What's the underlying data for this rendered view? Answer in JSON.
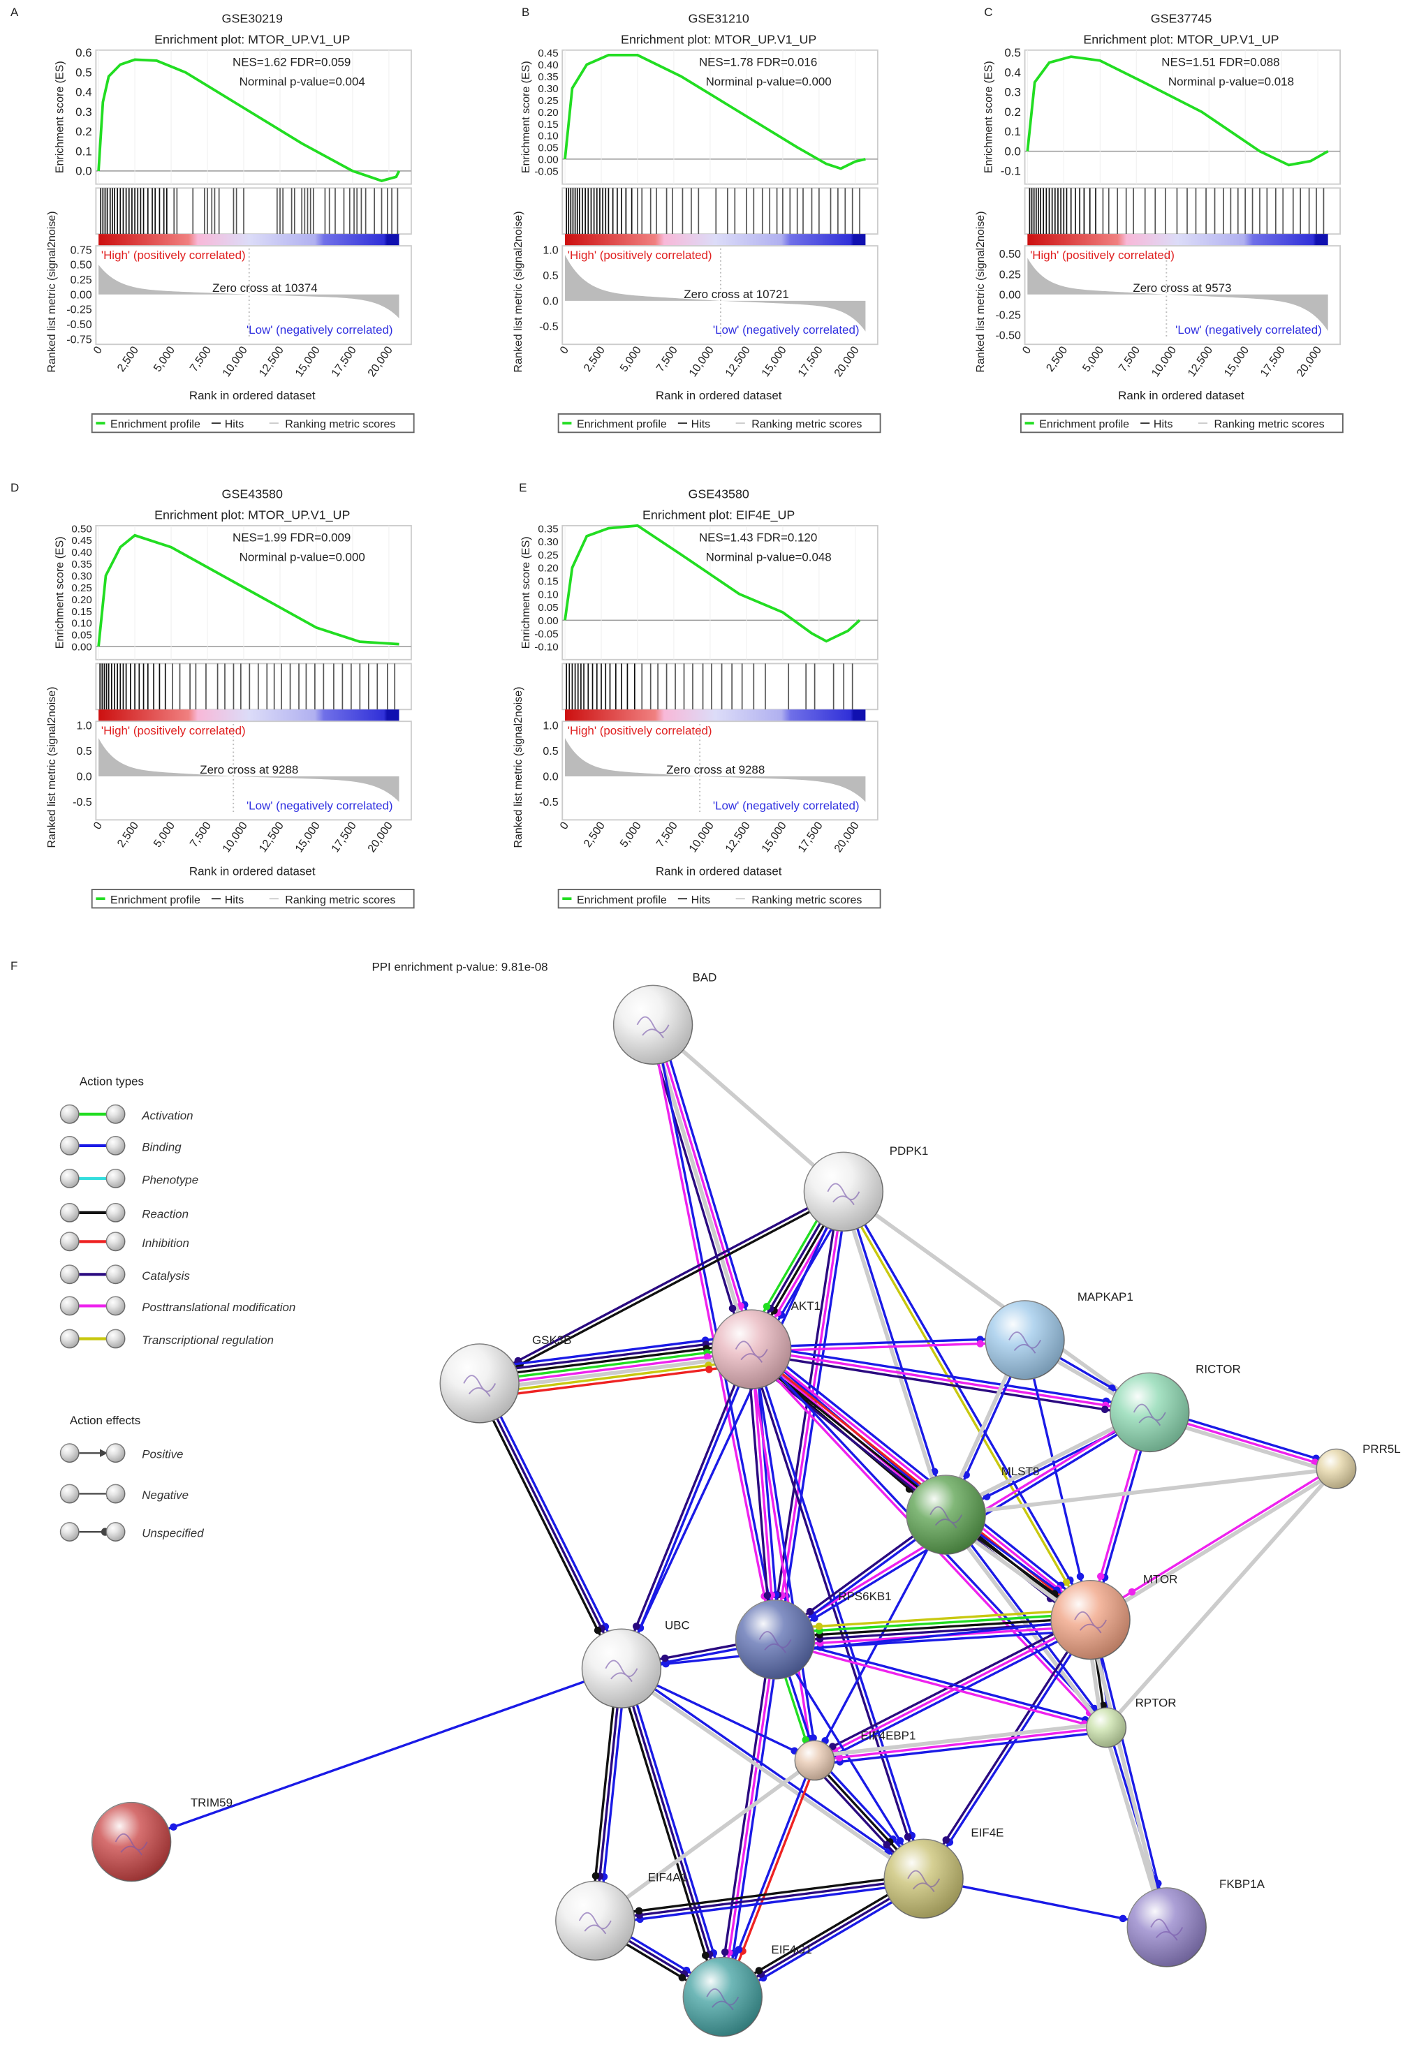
{
  "gsea_panels": [
    {
      "label": "A",
      "dataset": "GSE30219",
      "title": "Enrichment plot: MTOR_UP.V1_UP",
      "stats": "NES=1.62  FDR=0.059",
      "pvalue": "Norminal p-value=0.004",
      "es_ticks": [
        "0.0",
        "0.1",
        "0.2",
        "0.3",
        "0.4",
        "0.5",
        "0.6"
      ],
      "es_range": [
        0,
        0.6
      ],
      "metric_ticks": [
        "0.75",
        "0.50",
        "0.25",
        "0.00",
        "-0.25",
        "-0.50",
        "-0.75"
      ],
      "metric_range": [
        -0.75,
        0.75
      ],
      "metric_start": 0.5,
      "metric_end": -0.4,
      "zero_cross": "Zero cross at 10374",
      "zero_cross_rank": 10374,
      "es_curve": [
        [
          0,
          0
        ],
        [
          300,
          0.35
        ],
        [
          700,
          0.48
        ],
        [
          1500,
          0.54
        ],
        [
          2500,
          0.565
        ],
        [
          4000,
          0.56
        ],
        [
          6000,
          0.5
        ],
        [
          10000,
          0.32
        ],
        [
          14000,
          0.14
        ],
        [
          17500,
          0.0
        ],
        [
          19500,
          -0.05
        ],
        [
          20500,
          -0.03
        ],
        [
          20700,
          0
        ]
      ],
      "hits": [
        150,
        300,
        450,
        600,
        800,
        950,
        1100,
        1300,
        1500,
        1700,
        1900,
        2100,
        2300,
        2500,
        2700,
        2900,
        3100,
        3400,
        3700,
        3900,
        4200,
        4500,
        4700,
        5200,
        5400,
        6500,
        7300,
        7500,
        7800,
        8000,
        8300,
        9300,
        9500,
        10000,
        12300,
        12500,
        12700,
        13300,
        13500,
        14000,
        14200,
        14400,
        14600,
        14800,
        15600,
        15900,
        16300,
        16900,
        17300,
        17600,
        17800,
        18100,
        18400,
        19000,
        19500,
        19900,
        20200,
        20600
      ]
    },
    {
      "label": "B",
      "dataset": "GSE31210",
      "title": "Enrichment plot: MTOR_UP.V1_UP",
      "stats": "NES=1.78  FDR=0.016",
      "pvalue": "Norminal p-value=0.000",
      "es_ticks": [
        "-0.05",
        "0.00",
        "0.05",
        "0.10",
        "0.15",
        "0.20",
        "0.25",
        "0.30",
        "0.35",
        "0.40",
        "0.45"
      ],
      "es_range": [
        -0.05,
        0.45
      ],
      "metric_ticks": [
        "1.0",
        "0.5",
        "0.0",
        "-0.5"
      ],
      "metric_range": [
        -0.75,
        1.0
      ],
      "metric_start": 0.9,
      "metric_end": -0.6,
      "zero_cross": "Zero cross at 10721",
      "zero_cross_rank": 10721,
      "es_curve": [
        [
          0,
          0
        ],
        [
          500,
          0.3
        ],
        [
          1500,
          0.4
        ],
        [
          3000,
          0.44
        ],
        [
          5000,
          0.44
        ],
        [
          8000,
          0.35
        ],
        [
          12000,
          0.2
        ],
        [
          16000,
          0.05
        ],
        [
          18000,
          -0.02
        ],
        [
          19000,
          -0.04
        ],
        [
          20000,
          -0.01
        ],
        [
          20700,
          0
        ]
      ],
      "hits": [
        100,
        250,
        400,
        550,
        700,
        850,
        1000,
        1200,
        1400,
        1600,
        1800,
        2000,
        2200,
        2400,
        2600,
        2800,
        3000,
        3300,
        3600,
        3900,
        4200,
        4600,
        5000,
        5300,
        5900,
        6300,
        7000,
        7400,
        8100,
        8700,
        9200,
        10400,
        11200,
        11700,
        12500,
        13000,
        13600,
        14100,
        14600,
        15000,
        15500,
        16000,
        16400,
        17000,
        17500,
        18300,
        18800,
        19300,
        19800,
        20300
      ]
    },
    {
      "label": "C",
      "dataset": "GSE37745",
      "title": "Enrichment plot: MTOR_UP.V1_UP",
      "stats": "NES=1.51  FDR=0.088",
      "pvalue": "Norminal p-value=0.018",
      "es_ticks": [
        "-0.1",
        "0.0",
        "0.1",
        "0.2",
        "0.3",
        "0.4",
        "0.5"
      ],
      "es_range": [
        -0.1,
        0.5
      ],
      "metric_ticks": [
        "0.50",
        "0.25",
        "0.00",
        "-0.25",
        "-0.50"
      ],
      "metric_range": [
        -0.55,
        0.55
      ],
      "metric_start": 0.45,
      "metric_end": -0.45,
      "zero_cross": "Zero cross at 9573",
      "zero_cross_rank": 9573,
      "es_curve": [
        [
          0,
          0
        ],
        [
          500,
          0.35
        ],
        [
          1500,
          0.45
        ],
        [
          3000,
          0.48
        ],
        [
          5000,
          0.46
        ],
        [
          8000,
          0.35
        ],
        [
          12000,
          0.2
        ],
        [
          16000,
          0.0
        ],
        [
          18000,
          -0.07
        ],
        [
          19500,
          -0.05
        ],
        [
          20700,
          0.0
        ]
      ],
      "hits": [
        150,
        300,
        450,
        600,
        750,
        900,
        1100,
        1300,
        1500,
        1700,
        1900,
        2100,
        2300,
        2500,
        2700,
        3000,
        3300,
        3600,
        3900,
        4300,
        4700,
        5200,
        5600,
        6200,
        6800,
        7300,
        8100,
        8800,
        9500,
        10300,
        11000,
        11600,
        12300,
        12900,
        13500,
        14000,
        14500,
        15000,
        15500,
        16000,
        16500,
        17100,
        17600,
        18300,
        18800,
        19400,
        19900,
        20400
      ]
    },
    {
      "label": "D",
      "dataset": "GSE43580",
      "title": "Enrichment plot: MTOR_UP.V1_UP",
      "stats": "NES=1.99  FDR=0.009",
      "pvalue": "Norminal p-value=0.000",
      "es_ticks": [
        "0.00",
        "0.05",
        "0.10",
        "0.15",
        "0.20",
        "0.25",
        "0.30",
        "0.35",
        "0.40",
        "0.45",
        "0.50"
      ],
      "es_range": [
        0,
        0.5
      ],
      "metric_ticks": [
        "1.0",
        "0.5",
        "0.0",
        "-0.5"
      ],
      "metric_range": [
        -0.75,
        1.0
      ],
      "metric_start": 0.75,
      "metric_end": -0.5,
      "zero_cross": "Zero cross at 9288",
      "zero_cross_rank": 9288,
      "es_curve": [
        [
          0,
          0
        ],
        [
          500,
          0.3
        ],
        [
          1500,
          0.42
        ],
        [
          2500,
          0.47
        ],
        [
          5000,
          0.42
        ],
        [
          10000,
          0.25
        ],
        [
          15000,
          0.08
        ],
        [
          18000,
          0.02
        ],
        [
          20700,
          0.01
        ]
      ],
      "hits": [
        100,
        250,
        400,
        550,
        700,
        900,
        1100,
        1300,
        1500,
        1700,
        1900,
        2200,
        2500,
        2800,
        3100,
        3400,
        3800,
        4200,
        4600,
        5100,
        5600,
        6300,
        6700,
        7400,
        8200,
        8700,
        9300,
        9800,
        10400,
        11000,
        11600,
        12100,
        12600,
        13200,
        13800,
        14300,
        14900,
        15500,
        16200,
        16800,
        17400,
        18000,
        18600,
        19200,
        19900,
        20400
      ]
    },
    {
      "label": "E",
      "dataset": "GSE43580",
      "title": "Enrichment plot: EIF4E_UP",
      "stats": "NES=1.43  FDR=0.120",
      "pvalue": "Norminal p-value=0.048",
      "es_ticks": [
        "-0.10",
        "-0.05",
        "0.00",
        "0.05",
        "0.10",
        "0.15",
        "0.20",
        "0.25",
        "0.30",
        "0.35"
      ],
      "es_range": [
        -0.1,
        0.35
      ],
      "metric_ticks": [
        "1.0",
        "0.5",
        "0.0",
        "-0.5"
      ],
      "metric_range": [
        -0.75,
        1.0
      ],
      "metric_start": 0.75,
      "metric_end": -0.5,
      "zero_cross": "Zero cross at 9288",
      "zero_cross_rank": 9288,
      "es_curve": [
        [
          0,
          0
        ],
        [
          500,
          0.2
        ],
        [
          1500,
          0.32
        ],
        [
          3000,
          0.35
        ],
        [
          5000,
          0.36
        ],
        [
          8000,
          0.25
        ],
        [
          12000,
          0.1
        ],
        [
          15000,
          0.03
        ],
        [
          17000,
          -0.05
        ],
        [
          18000,
          -0.08
        ],
        [
          19500,
          -0.04
        ],
        [
          20300,
          0.0
        ]
      ],
      "hits": [
        100,
        300,
        500,
        700,
        900,
        1100,
        1300,
        1600,
        1900,
        2200,
        2500,
        2800,
        3100,
        3500,
        3900,
        4300,
        4800,
        5300,
        5900,
        6400,
        7000,
        7600,
        8200,
        8800,
        9500,
        10100,
        10800,
        11500,
        12200,
        13000,
        13800,
        15400,
        16600,
        17200,
        18500,
        19200,
        19800
      ]
    }
  ],
  "gsea_common": {
    "es_ylabel": "Enrichment score (ES)",
    "metric_ylabel": "Ranked list metric (signal2noise)",
    "xlabel": "Rank in ordered dataset",
    "x_ticks": [
      "0",
      "2,500",
      "5,000",
      "7,500",
      "10,000",
      "12,500",
      "15,000",
      "17,500",
      "20,000"
    ],
    "x_tick_values": [
      0,
      2500,
      5000,
      7500,
      10000,
      12500,
      15000,
      17500,
      20000
    ],
    "high_label": "'High' (positively correlated)",
    "low_label": "'Low' (negatively correlated)",
    "legend": {
      "profile": "Enrichment profile",
      "hits": "Hits",
      "metric": "Ranking metric scores"
    },
    "colors": {
      "profile": "#22dd22",
      "high": "#e02020",
      "low": "#3030e0"
    }
  },
  "network": {
    "label": "F",
    "ppi_text": "PPI enrichment p-value: 9.81e-08",
    "action_types_title": "Action types",
    "action_types": [
      {
        "key": "activation",
        "label": "Activation",
        "color": "#22dd22"
      },
      {
        "key": "binding",
        "label": "Binding",
        "color": "#1a1ae6"
      },
      {
        "key": "phenotype",
        "label": "Phenotype",
        "color": "#33dddd"
      },
      {
        "key": "reaction",
        "label": "Reaction",
        "color": "#111111"
      },
      {
        "key": "inhibition",
        "label": "Inhibition",
        "color": "#ee2222"
      },
      {
        "key": "catalysis",
        "label": "Catalysis",
        "color": "#2a0a80"
      },
      {
        "key": "ptm",
        "label": "Posttranslational modification",
        "color": "#ee22ee"
      },
      {
        "key": "transcription",
        "label": "Transcriptional regulation",
        "color": "#c8c810"
      }
    ],
    "other_edge_color": "#cccccc",
    "action_effects_title": "Action effects",
    "action_effects": [
      {
        "key": "positive",
        "label": "Positive"
      },
      {
        "key": "negative",
        "label": "Negative"
      },
      {
        "key": "unspecified",
        "label": "Unspecified"
      }
    ],
    "nodes": [
      {
        "name": "BAD",
        "color": "#eeeeee"
      },
      {
        "name": "PDPK1",
        "color": "#eeeeee"
      },
      {
        "name": "AKT1",
        "color": "#e8b4bc"
      },
      {
        "name": "GSK3B",
        "color": "#eeeeee"
      },
      {
        "name": "MAPKAP1",
        "color": "#9cc8ea"
      },
      {
        "name": "RICTOR",
        "color": "#8ad8b0"
      },
      {
        "name": "PRR5L",
        "color": "#e4d4a4"
      },
      {
        "name": "MLST8",
        "color": "#58a04c"
      },
      {
        "name": "MTOR",
        "color": "#f0a080"
      },
      {
        "name": "RPS6KB1",
        "color": "#5a6cb0"
      },
      {
        "name": "UBC",
        "color": "#eeeeee"
      },
      {
        "name": "RPTOR",
        "color": "#c8e0a8"
      },
      {
        "name": "EIF4EBP1",
        "color": "#e8c8b0"
      },
      {
        "name": "EIF4E",
        "color": "#c8c070"
      },
      {
        "name": "EIF4A1",
        "color": "#eeeeee"
      },
      {
        "name": "EIF4G1",
        "color": "#40a0a0"
      },
      {
        "name": "FKBP1A",
        "color": "#9080c8"
      },
      {
        "name": "TRIM59",
        "color": "#c84040"
      }
    ],
    "edges": [
      "BAD|AKT1|binding,ptm,other,catalysis",
      "BAD|PDPK1|other",
      "BAD|RPS6KB1|binding,ptm",
      "PDPK1|AKT1|binding,ptm,reaction,catalysis,activation",
      "PDPK1|GSK3B|reaction,catalysis",
      "PDPK1|RPS6KB1|binding,ptm,catalysis",
      "PDPK1|MLST8|binding,other",
      "PDPK1|MTOR|binding,transcription",
      "PDPK1|RICTOR|other",
      "PDPK1|UBC|binding",
      "GSK3B|AKT1|binding,catalysis,reaction,activation,ptm,other,transcription,inhibition",
      "GSK3B|UBC|binding,catalysis,reaction",
      "AKT1|MAPKAP1|binding,ptm",
      "AKT1|RICTOR|binding,ptm,catalysis",
      "AKT1|MLST8|binding,ptm,reaction",
      "AKT1|MTOR|binding,ptm,inhibition,reaction,catalysis",
      "AKT1|RPS6KB1|binding,ptm,catalysis",
      "AKT1|UBC|binding,catalysis",
      "AKT1|EIF4EBP1|binding,ptm",
      "AKT1|RPTOR|binding,ptm",
      "AKT1|EIF4E|binding,catalysis",
      "MAPKAP1|RICTOR|binding,other",
      "MAPKAP1|MTOR|binding",
      "MAPKAP1|MLST8|binding,other",
      "RICTOR|MTOR|binding,ptm",
      "RICTOR|MLST8|binding,other",
      "RICTOR|PRR5L|binding,ptm,other",
      "RICTOR|RPS6KB1|binding,ptm",
      "PRR5L|MLST8|other",
      "PRR5L|MTOR|other,ptm",
      "PRR5L|RPTOR|other",
      "MLST8|MTOR|binding,reaction,other",
      "MLST8|RPTOR|binding,other",
      "MLST8|RPS6KB1|binding,catalysis",
      "MLST8|EIF4EBP1|binding",
      "MTOR|RPS6KB1|binding,ptm,catalysis,reaction,activation,transcription",
      "MTOR|RPTOR|binding,reaction,other",
      "MTOR|EIF4EBP1|binding,ptm,catalysis",
      "MTOR|EIF4E|binding,catalysis",
      "MTOR|UBC|binding",
      "RPS6KB1|UBC|binding,catalysis",
      "RPS6KB1|RPTOR|binding,ptm",
      "RPS6KB1|EIF4EBP1|binding,activation",
      "RPS6KB1|EIF4G1|binding,ptm,catalysis",
      "RPS6KB1|EIF4E|binding",
      "UBC|TRIM59|binding",
      "UBC|EIF4A1|binding,catalysis,reaction",
      "UBC|EIF4G1|binding,catalysis,reaction",
      "UBC|EIF4E|binding,other",
      "UBC|EIF4EBP1|binding",
      "RPTOR|EIF4EBP1|binding,ptm,other",
      "RPTOR|FKBP1A|binding,other",
      "MTOR|FKBP1A|binding,other",
      "EIF4EBP1|EIF4E|binding,reaction,catalysis",
      "EIF4EBP1|EIF4G1|inhibition,binding",
      "EIF4EBP1|EIF4A1|other",
      "EIF4E|EIF4A1|binding,catalysis,reaction",
      "EIF4E|EIF4G1|binding,catalysis,reaction",
      "EIF4A1|EIF4G1|binding,catalysis,reaction",
      "EIF4E|FKBP1A|binding"
    ]
  }
}
